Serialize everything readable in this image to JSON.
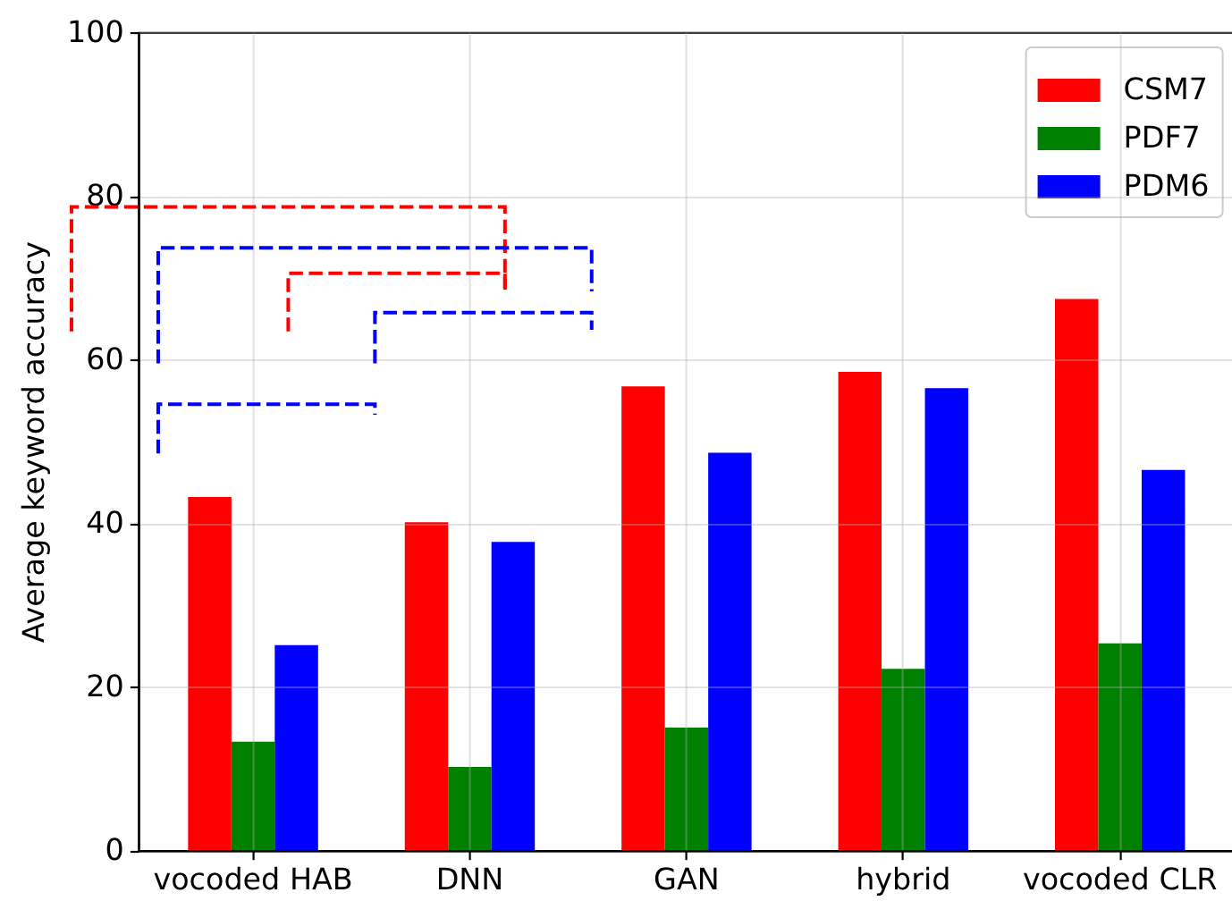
{
  "chart_data": {
    "type": "bar",
    "ylabel": "Average keyword accuracy",
    "categories": [
      "vocoded HAB",
      "DNN",
      "GAN",
      "hybrid",
      "vocoded CLR"
    ],
    "series": [
      {
        "name": "CSM7",
        "color": "#ff0000",
        "values": [
          43.2,
          40.1,
          56.7,
          58.5,
          67.4
        ]
      },
      {
        "name": "PDF7",
        "color": "#008000",
        "values": [
          13.3,
          10.2,
          15.0,
          22.2,
          25.3
        ]
      },
      {
        "name": "PDM6",
        "color": "#0000ff",
        "values": [
          25.1,
          37.7,
          48.6,
          56.5,
          46.5
        ]
      }
    ],
    "ylim": [
      0,
      100
    ],
    "yticks": [
      0,
      20,
      40,
      60,
      80,
      100
    ],
    "grid": true,
    "legend": "top right"
  }
}
